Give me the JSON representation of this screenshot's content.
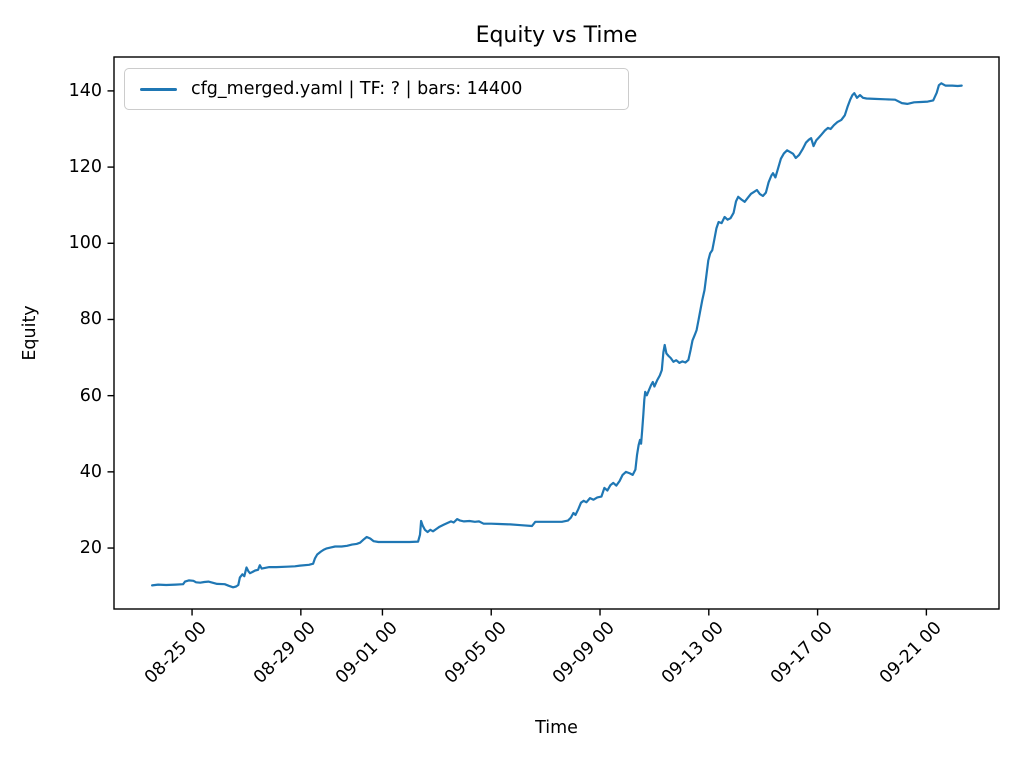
{
  "title": "Equity vs Time",
  "xlabel": "Time",
  "ylabel": "Equity",
  "legend": {
    "label": "cfg_merged.yaml | TF: ? | bars: 14400"
  },
  "colors": {
    "line": "#1f77b4",
    "text": "#000000",
    "spine": "#000000",
    "legend_border": "#cccccc",
    "background": "#ffffff"
  },
  "chart_data": {
    "type": "line",
    "title": "Equity vs Time",
    "xlabel": "Time",
    "ylabel": "Equity",
    "grid": false,
    "legend_position": "upper left",
    "x_unit": "days relative to 08-25 00:00; tick labels are MM-DD HH",
    "xlim": [
      -2.87,
      29.67
    ],
    "ylim": [
      4.0,
      148.9
    ],
    "y_ticks": [
      20,
      40,
      60,
      80,
      100,
      120,
      140
    ],
    "x_ticks": [
      {
        "t": 0,
        "label": "08-25 00"
      },
      {
        "t": 4,
        "label": "08-29 00"
      },
      {
        "t": 7,
        "label": "09-01 00"
      },
      {
        "t": 11,
        "label": "09-05 00"
      },
      {
        "t": 15,
        "label": "09-09 00"
      },
      {
        "t": 19,
        "label": "09-13 00"
      },
      {
        "t": 23,
        "label": "09-17 00"
      },
      {
        "t": 27,
        "label": "09-21 00"
      }
    ],
    "series": [
      {
        "name": "cfg_merged.yaml | TF: ? | bars: 14400",
        "color": "#1f77b4",
        "points": [
          [
            -1.47,
            10.2
          ],
          [
            -1.25,
            10.4
          ],
          [
            -0.95,
            10.3
          ],
          [
            -0.6,
            10.4
          ],
          [
            -0.33,
            10.5
          ],
          [
            -0.26,
            11.2
          ],
          [
            -0.12,
            11.5
          ],
          [
            0.05,
            11.4
          ],
          [
            0.15,
            11.0
          ],
          [
            0.3,
            10.9
          ],
          [
            0.45,
            11.1
          ],
          [
            0.6,
            11.2
          ],
          [
            0.75,
            10.9
          ],
          [
            0.92,
            10.6
          ],
          [
            1.2,
            10.5
          ],
          [
            1.35,
            10.1
          ],
          [
            1.51,
            9.7
          ],
          [
            1.62,
            9.9
          ],
          [
            1.7,
            10.3
          ],
          [
            1.76,
            12.3
          ],
          [
            1.85,
            13.1
          ],
          [
            1.92,
            12.6
          ],
          [
            2.0,
            14.9
          ],
          [
            2.07,
            13.9
          ],
          [
            2.13,
            13.4
          ],
          [
            2.22,
            13.7
          ],
          [
            2.32,
            14.1
          ],
          [
            2.43,
            14.3
          ],
          [
            2.49,
            15.5
          ],
          [
            2.56,
            14.6
          ],
          [
            2.68,
            14.8
          ],
          [
            2.84,
            15.0
          ],
          [
            3.1,
            15.0
          ],
          [
            3.49,
            15.1
          ],
          [
            3.78,
            15.2
          ],
          [
            3.97,
            15.4
          ],
          [
            4.3,
            15.6
          ],
          [
            4.45,
            15.9
          ],
          [
            4.52,
            17.3
          ],
          [
            4.6,
            18.3
          ],
          [
            4.67,
            18.7
          ],
          [
            4.74,
            19.1
          ],
          [
            4.85,
            19.6
          ],
          [
            4.95,
            19.9
          ],
          [
            5.07,
            20.1
          ],
          [
            5.26,
            20.4
          ],
          [
            5.5,
            20.4
          ],
          [
            5.7,
            20.6
          ],
          [
            5.88,
            20.9
          ],
          [
            6.05,
            21.1
          ],
          [
            6.18,
            21.4
          ],
          [
            6.3,
            22.2
          ],
          [
            6.42,
            22.9
          ],
          [
            6.55,
            22.5
          ],
          [
            6.68,
            21.8
          ],
          [
            6.85,
            21.6
          ],
          [
            7.2,
            21.6
          ],
          [
            7.6,
            21.6
          ],
          [
            8.0,
            21.6
          ],
          [
            8.31,
            21.7
          ],
          [
            8.38,
            23.5
          ],
          [
            8.42,
            27.1
          ],
          [
            8.48,
            25.9
          ],
          [
            8.56,
            24.8
          ],
          [
            8.66,
            24.2
          ],
          [
            8.76,
            24.8
          ],
          [
            8.86,
            24.4
          ],
          [
            8.98,
            25.0
          ],
          [
            9.1,
            25.6
          ],
          [
            9.25,
            26.1
          ],
          [
            9.4,
            26.6
          ],
          [
            9.52,
            27.0
          ],
          [
            9.62,
            26.7
          ],
          [
            9.75,
            27.6
          ],
          [
            9.86,
            27.2
          ],
          [
            10.0,
            27.0
          ],
          [
            10.2,
            27.1
          ],
          [
            10.4,
            26.9
          ],
          [
            10.55,
            27.0
          ],
          [
            10.72,
            26.4
          ],
          [
            11.0,
            26.4
          ],
          [
            11.3,
            26.3
          ],
          [
            11.7,
            26.2
          ],
          [
            12.1,
            26.0
          ],
          [
            12.5,
            25.8
          ],
          [
            12.62,
            26.9
          ],
          [
            13.0,
            26.9
          ],
          [
            13.3,
            26.9
          ],
          [
            13.6,
            26.9
          ],
          [
            13.82,
            27.2
          ],
          [
            13.93,
            28.0
          ],
          [
            14.02,
            29.2
          ],
          [
            14.1,
            28.7
          ],
          [
            14.2,
            30.2
          ],
          [
            14.3,
            31.9
          ],
          [
            14.4,
            32.4
          ],
          [
            14.5,
            32.0
          ],
          [
            14.63,
            33.1
          ],
          [
            14.76,
            32.7
          ],
          [
            14.9,
            33.3
          ],
          [
            15.05,
            33.5
          ],
          [
            15.16,
            35.8
          ],
          [
            15.27,
            35.1
          ],
          [
            15.38,
            36.5
          ],
          [
            15.49,
            37.1
          ],
          [
            15.6,
            36.4
          ],
          [
            15.72,
            37.6
          ],
          [
            15.83,
            39.2
          ],
          [
            15.95,
            40.0
          ],
          [
            16.1,
            39.6
          ],
          [
            16.2,
            39.2
          ],
          [
            16.3,
            40.6
          ],
          [
            16.36,
            44.4
          ],
          [
            16.42,
            47.0
          ],
          [
            16.47,
            48.4
          ],
          [
            16.51,
            47.4
          ],
          [
            16.55,
            51.0
          ],
          [
            16.59,
            54.9
          ],
          [
            16.63,
            58.9
          ],
          [
            16.66,
            61.0
          ],
          [
            16.72,
            60.1
          ],
          [
            16.8,
            61.5
          ],
          [
            16.88,
            62.8
          ],
          [
            16.94,
            63.6
          ],
          [
            17.0,
            62.4
          ],
          [
            17.1,
            64.0
          ],
          [
            17.2,
            65.3
          ],
          [
            17.27,
            66.7
          ],
          [
            17.33,
            71.4
          ],
          [
            17.38,
            73.3
          ],
          [
            17.44,
            71.1
          ],
          [
            17.52,
            70.4
          ],
          [
            17.6,
            69.9
          ],
          [
            17.7,
            68.9
          ],
          [
            17.8,
            69.3
          ],
          [
            17.92,
            68.6
          ],
          [
            18.03,
            69.0
          ],
          [
            18.14,
            68.7
          ],
          [
            18.25,
            69.4
          ],
          [
            18.33,
            72.0
          ],
          [
            18.4,
            74.5
          ],
          [
            18.48,
            75.9
          ],
          [
            18.55,
            77.2
          ],
          [
            18.62,
            79.8
          ],
          [
            18.69,
            82.5
          ],
          [
            18.76,
            85.1
          ],
          [
            18.84,
            87.7
          ],
          [
            18.91,
            91.6
          ],
          [
            18.98,
            95.5
          ],
          [
            19.05,
            97.4
          ],
          [
            19.13,
            98.2
          ],
          [
            19.2,
            100.8
          ],
          [
            19.28,
            103.9
          ],
          [
            19.36,
            105.6
          ],
          [
            19.47,
            105.3
          ],
          [
            19.58,
            106.9
          ],
          [
            19.69,
            106.2
          ],
          [
            19.8,
            106.6
          ],
          [
            19.91,
            108.0
          ],
          [
            20.0,
            111.0
          ],
          [
            20.08,
            112.2
          ],
          [
            20.2,
            111.5
          ],
          [
            20.32,
            110.9
          ],
          [
            20.44,
            112.0
          ],
          [
            20.55,
            113.0
          ],
          [
            20.66,
            113.5
          ],
          [
            20.77,
            114.0
          ],
          [
            20.88,
            112.9
          ],
          [
            20.99,
            112.4
          ],
          [
            21.1,
            113.3
          ],
          [
            21.2,
            116.0
          ],
          [
            21.3,
            117.8
          ],
          [
            21.36,
            118.4
          ],
          [
            21.45,
            117.3
          ],
          [
            21.55,
            119.8
          ],
          [
            21.65,
            122.2
          ],
          [
            21.76,
            123.6
          ],
          [
            21.88,
            124.4
          ],
          [
            22.0,
            123.9
          ],
          [
            22.1,
            123.5
          ],
          [
            22.2,
            122.4
          ],
          [
            22.32,
            123.2
          ],
          [
            22.45,
            124.7
          ],
          [
            22.57,
            126.4
          ],
          [
            22.68,
            127.2
          ],
          [
            22.76,
            127.6
          ],
          [
            22.85,
            125.5
          ],
          [
            22.95,
            127.0
          ],
          [
            23.05,
            127.8
          ],
          [
            23.15,
            128.6
          ],
          [
            23.27,
            129.6
          ],
          [
            23.38,
            130.3
          ],
          [
            23.48,
            130.0
          ],
          [
            23.6,
            131.0
          ],
          [
            23.73,
            131.8
          ],
          [
            23.87,
            132.4
          ],
          [
            24.0,
            133.6
          ],
          [
            24.1,
            135.8
          ],
          [
            24.2,
            137.7
          ],
          [
            24.28,
            138.9
          ],
          [
            24.35,
            139.4
          ],
          [
            24.45,
            138.2
          ],
          [
            24.56,
            138.9
          ],
          [
            24.67,
            138.2
          ],
          [
            24.8,
            138.0
          ],
          [
            25.1,
            137.9
          ],
          [
            25.5,
            137.8
          ],
          [
            25.85,
            137.7
          ],
          [
            26.1,
            136.8
          ],
          [
            26.3,
            136.6
          ],
          [
            26.55,
            137.0
          ],
          [
            26.8,
            137.1
          ],
          [
            27.05,
            137.2
          ],
          [
            27.25,
            137.5
          ],
          [
            27.38,
            139.5
          ],
          [
            27.46,
            141.5
          ],
          [
            27.55,
            142.0
          ],
          [
            27.7,
            141.4
          ],
          [
            27.95,
            141.4
          ],
          [
            28.15,
            141.3
          ],
          [
            28.3,
            141.4
          ]
        ]
      }
    ]
  }
}
